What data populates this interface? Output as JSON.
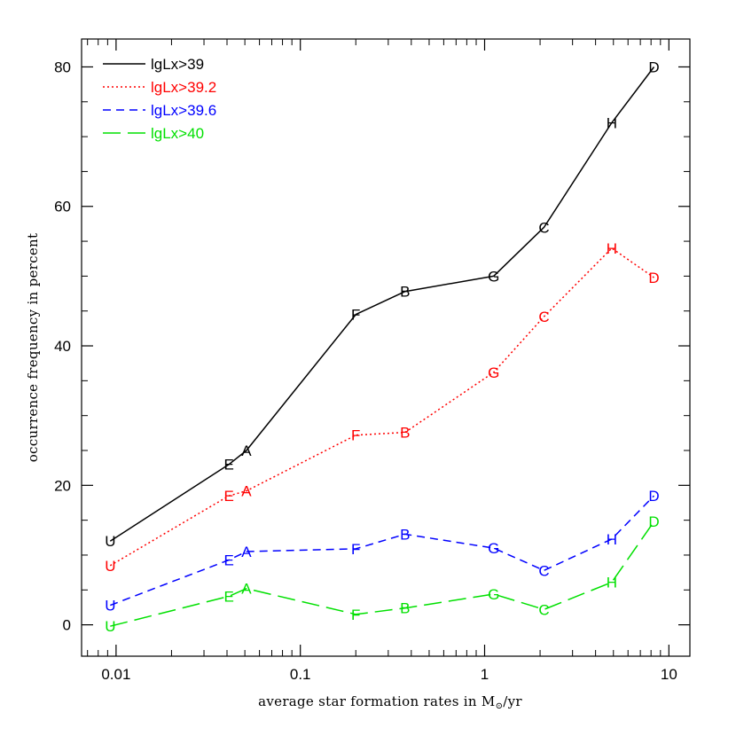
{
  "chart_data": {
    "type": "line",
    "xscale": "log",
    "xlim": [
      0.0065,
      13
    ],
    "ylim": [
      -4.5,
      84
    ],
    "grid": false,
    "legend_position": "top-left",
    "xlabel_prefix": "average star formation rates in M",
    "xlabel_subscript": "⊙",
    "xlabel_suffix": "/yr",
    "ylabel": "occurrence frequency in percent",
    "x_ticks": [
      {
        "value": 0.01,
        "label": "0.01"
      },
      {
        "value": 0.1,
        "label": "0.1"
      },
      {
        "value": 1,
        "label": "1"
      },
      {
        "value": 10,
        "label": "10"
      }
    ],
    "y_ticks": [
      {
        "value": 0,
        "label": "0"
      },
      {
        "value": 20,
        "label": "20"
      },
      {
        "value": 40,
        "label": "40"
      },
      {
        "value": 60,
        "label": "60"
      },
      {
        "value": 80,
        "label": "80"
      }
    ],
    "series": [
      {
        "name": "lgLx>39",
        "color": "#000000",
        "dash": "solid",
        "points": [
          {
            "label": "U",
            "x": 0.0093,
            "y": 12.0
          },
          {
            "label": "E",
            "x": 0.041,
            "y": 23.0
          },
          {
            "label": "A",
            "x": 0.051,
            "y": 25.0
          },
          {
            "label": "F",
            "x": 0.2,
            "y": 44.5
          },
          {
            "label": "B",
            "x": 0.37,
            "y": 47.8
          },
          {
            "label": "G",
            "x": 1.12,
            "y": 50.0
          },
          {
            "label": "C",
            "x": 2.1,
            "y": 57.0
          },
          {
            "label": "H",
            "x": 4.9,
            "y": 72.0
          },
          {
            "label": "D",
            "x": 8.3,
            "y": 80.0
          }
        ]
      },
      {
        "name": "lgLx>39.2",
        "color": "#ff0000",
        "dash": "dotted",
        "points": [
          {
            "label": "U",
            "x": 0.0093,
            "y": 8.5
          },
          {
            "label": "E",
            "x": 0.041,
            "y": 18.5
          },
          {
            "label": "A",
            "x": 0.051,
            "y": 19.2
          },
          {
            "label": "F",
            "x": 0.2,
            "y": 27.2
          },
          {
            "label": "B",
            "x": 0.37,
            "y": 27.6
          },
          {
            "label": "G",
            "x": 1.12,
            "y": 36.2
          },
          {
            "label": "C",
            "x": 2.1,
            "y": 44.2
          },
          {
            "label": "H",
            "x": 4.9,
            "y": 54.0
          },
          {
            "label": "D",
            "x": 8.3,
            "y": 49.8
          }
        ]
      },
      {
        "name": "lgLx>39.6",
        "color": "#0000ff",
        "dash": "dashed",
        "points": [
          {
            "label": "U",
            "x": 0.0093,
            "y": 2.8
          },
          {
            "label": "E",
            "x": 0.041,
            "y": 9.3
          },
          {
            "label": "A",
            "x": 0.051,
            "y": 10.5
          },
          {
            "label": "F",
            "x": 0.2,
            "y": 10.9
          },
          {
            "label": "B",
            "x": 0.37,
            "y": 13.0
          },
          {
            "label": "G",
            "x": 1.12,
            "y": 11.0
          },
          {
            "label": "C",
            "x": 2.1,
            "y": 7.8
          },
          {
            "label": "H",
            "x": 4.9,
            "y": 12.3
          },
          {
            "label": "D",
            "x": 8.3,
            "y": 18.5
          }
        ]
      },
      {
        "name": "lgLx>40",
        "color": "#00e000",
        "dash": "longdash",
        "points": [
          {
            "label": "U",
            "x": 0.0093,
            "y": -0.2
          },
          {
            "label": "E",
            "x": 0.041,
            "y": 4.1
          },
          {
            "label": "A",
            "x": 0.051,
            "y": 5.2
          },
          {
            "label": "F",
            "x": 0.2,
            "y": 1.5
          },
          {
            "label": "B",
            "x": 0.37,
            "y": 2.4
          },
          {
            "label": "G",
            "x": 1.12,
            "y": 4.4
          },
          {
            "label": "C",
            "x": 2.1,
            "y": 2.2
          },
          {
            "label": "H",
            "x": 4.9,
            "y": 6.1
          },
          {
            "label": "D",
            "x": 8.3,
            "y": 14.8
          }
        ]
      }
    ]
  }
}
